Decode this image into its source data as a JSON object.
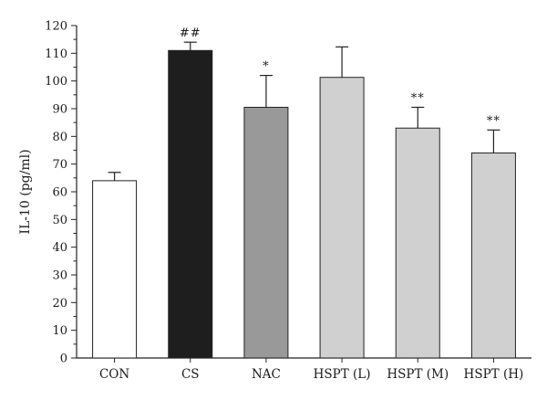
{
  "chart_data": {
    "type": "bar",
    "title": "",
    "xlabel": "",
    "ylabel": "IL-10 (pg/ml)",
    "ylim": [
      0,
      120
    ],
    "y_major_step": 10,
    "y_minor_step": 5,
    "y_ticks": [
      "0",
      "10",
      "20",
      "30",
      "40",
      "50",
      "60",
      "70",
      "80",
      "90",
      "100",
      "110",
      "120"
    ],
    "categories": [
      "CON",
      "CS",
      "NAC",
      "HSPT (L)",
      "HSPT (M)",
      "HSPT (H)"
    ],
    "values": [
      64,
      111,
      90.5,
      101.3,
      83,
      74
    ],
    "error": [
      3,
      3,
      11.5,
      11,
      7.5,
      8.3
    ],
    "annotations": [
      "",
      "##",
      "*",
      "",
      "**",
      "**"
    ],
    "bar_colors": [
      "#ffffff",
      "#1e1e1e",
      "#999999",
      "#d0d0d0",
      "#d0d0d0",
      "#d0d0d0"
    ],
    "legend": "none",
    "grid": false
  }
}
